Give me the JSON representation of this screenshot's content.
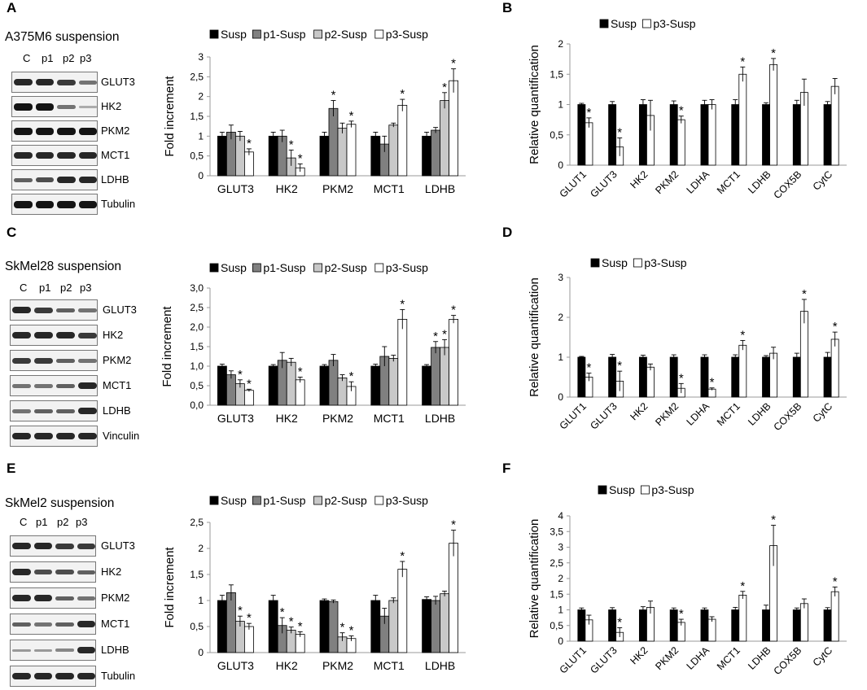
{
  "panels": {
    "A": "A",
    "B": "B",
    "C": "C",
    "D": "D",
    "E": "E",
    "F": "F"
  },
  "blots": [
    {
      "title": "A375M6 suspension",
      "lanes": [
        "C",
        "p1",
        "p2",
        "p3"
      ],
      "rows": [
        {
          "label": "GLUT3",
          "intensity": [
            0.9,
            0.9,
            0.8,
            0.5
          ]
        },
        {
          "label": "HK2",
          "intensity": [
            1.0,
            1.0,
            0.5,
            0.2
          ]
        },
        {
          "label": "PKM2",
          "intensity": [
            1.0,
            1.0,
            1.0,
            1.0
          ]
        },
        {
          "label": "MCT1",
          "intensity": [
            0.9,
            0.9,
            0.9,
            0.9
          ]
        },
        {
          "label": "LDHB",
          "intensity": [
            0.6,
            0.7,
            0.9,
            0.9
          ]
        },
        {
          "label": "Tubulin",
          "intensity": [
            1.0,
            1.0,
            1.0,
            1.0
          ]
        }
      ]
    },
    {
      "title": "SkMel28 suspension",
      "lanes": [
        "C",
        "p1",
        "p2",
        "p3"
      ],
      "rows": [
        {
          "label": "GLUT3",
          "intensity": [
            0.9,
            0.8,
            0.6,
            0.5
          ]
        },
        {
          "label": "HK2",
          "intensity": [
            0.9,
            0.9,
            0.9,
            0.8
          ]
        },
        {
          "label": "PKM2",
          "intensity": [
            0.8,
            0.8,
            0.6,
            0.5
          ]
        },
        {
          "label": "MCT1",
          "intensity": [
            0.5,
            0.5,
            0.6,
            0.9
          ]
        },
        {
          "label": "LDHB",
          "intensity": [
            0.5,
            0.6,
            0.6,
            0.9
          ]
        },
        {
          "label": "Vinculin",
          "intensity": [
            0.9,
            0.9,
            0.9,
            0.9
          ]
        }
      ]
    },
    {
      "title": "SkMel2 suspension",
      "lanes": [
        "C",
        "p1",
        "p2",
        "p3"
      ],
      "rows": [
        {
          "label": "GLUT3",
          "intensity": [
            0.9,
            0.9,
            0.8,
            0.8
          ]
        },
        {
          "label": "HK2",
          "intensity": [
            0.9,
            0.7,
            0.7,
            0.6
          ]
        },
        {
          "label": "PKM2",
          "intensity": [
            0.9,
            0.9,
            0.6,
            0.5
          ]
        },
        {
          "label": "MCT1",
          "intensity": [
            0.6,
            0.5,
            0.6,
            0.9
          ]
        },
        {
          "label": "LDHB",
          "intensity": [
            0.3,
            0.3,
            0.4,
            0.9
          ]
        },
        {
          "label": "Tubulin",
          "intensity": [
            0.9,
            0.9,
            0.9,
            0.9
          ]
        }
      ]
    }
  ],
  "chart_data": [
    {
      "id": "A-chart",
      "type": "bar",
      "ylabel": "Fold increment",
      "categories": [
        "GLUT3",
        "HK2",
        "PKM2",
        "MCT1",
        "LDHB"
      ],
      "ylim": [
        0,
        3
      ],
      "ticks": [
        0,
        0.5,
        1,
        1.5,
        2,
        2.5,
        3
      ],
      "tick_labels": [
        "0",
        "0,5",
        "1",
        "1,5",
        "2",
        "2,5",
        "3"
      ],
      "series": [
        {
          "name": "Susp",
          "color": "#000000",
          "values": [
            1,
            1,
            1,
            1,
            1
          ],
          "errors": [
            0.1,
            0.1,
            0.1,
            0.1,
            0.1
          ],
          "sig": [
            false,
            false,
            false,
            false,
            false
          ]
        },
        {
          "name": "p1-Susp",
          "color": "#808080",
          "values": [
            1.1,
            1.0,
            1.7,
            0.8,
            1.15
          ],
          "errors": [
            0.18,
            0.15,
            0.2,
            0.2,
            0.07
          ],
          "sig": [
            false,
            false,
            true,
            false,
            false
          ]
        },
        {
          "name": "p2-Susp",
          "color": "#c8c8c8",
          "values": [
            1.0,
            0.45,
            1.2,
            1.28,
            1.9
          ],
          "errors": [
            0.12,
            0.2,
            0.13,
            0.05,
            0.2
          ],
          "sig": [
            false,
            true,
            false,
            false,
            true
          ]
        },
        {
          "name": "p3-Susp",
          "color": "#ffffff",
          "values": [
            0.6,
            0.2,
            1.3,
            1.78,
            2.4
          ],
          "errors": [
            0.08,
            0.1,
            0.08,
            0.15,
            0.3
          ],
          "sig": [
            true,
            true,
            true,
            true,
            true
          ]
        }
      ]
    },
    {
      "id": "B-chart",
      "type": "bar",
      "ylabel": "Relative quantification",
      "categories": [
        "GLUT1",
        "GLUT3",
        "HK2",
        "PKM2",
        "LDHA",
        "MCT1",
        "LDHB",
        "COX5B",
        "CytC"
      ],
      "ylim": [
        0,
        2
      ],
      "ticks": [
        0,
        0.5,
        1,
        1.5,
        2
      ],
      "tick_labels": [
        "0",
        "0,5",
        "1",
        "1,5",
        "2"
      ],
      "series": [
        {
          "name": "Susp",
          "color": "#000000",
          "values": [
            1,
            1,
            1,
            1,
            1,
            1,
            1,
            1,
            1
          ],
          "errors": [
            0.02,
            0.05,
            0.08,
            0.06,
            0.07,
            0.08,
            0.03,
            0.07,
            0.05
          ],
          "sig": [
            false,
            false,
            false,
            false,
            false,
            false,
            false,
            false,
            false
          ]
        },
        {
          "name": "p3-Susp",
          "color": "#ffffff",
          "values": [
            0.7,
            0.3,
            0.82,
            0.75,
            1.0,
            1.5,
            1.66,
            1.2,
            1.3
          ],
          "errors": [
            0.08,
            0.15,
            0.25,
            0.06,
            0.08,
            0.12,
            0.1,
            0.22,
            0.13
          ],
          "sig": [
            true,
            true,
            false,
            true,
            false,
            true,
            true,
            false,
            false
          ]
        }
      ]
    },
    {
      "id": "C-chart",
      "type": "bar",
      "ylabel": "Fold increment",
      "categories": [
        "GLUT3",
        "HK2",
        "PKM2",
        "MCT1",
        "LDHB"
      ],
      "ylim": [
        0,
        3
      ],
      "ticks": [
        0,
        0.5,
        1,
        1.5,
        2,
        2.5,
        3
      ],
      "tick_labels": [
        "0,0",
        "0,5",
        "1,0",
        "1,5",
        "2,0",
        "2,5",
        "3,0"
      ],
      "series": [
        {
          "name": "Susp",
          "color": "#000000",
          "values": [
            1,
            1,
            1,
            1,
            1
          ],
          "errors": [
            0.05,
            0.04,
            0.04,
            0.05,
            0.04
          ],
          "sig": [
            false,
            false,
            false,
            false,
            false
          ]
        },
        {
          "name": "p1-Susp",
          "color": "#808080",
          "values": [
            0.78,
            1.15,
            1.15,
            1.25,
            1.48
          ],
          "errors": [
            0.1,
            0.2,
            0.15,
            0.25,
            0.15
          ],
          "sig": [
            false,
            false,
            false,
            false,
            true
          ]
        },
        {
          "name": "p2-Susp",
          "color": "#c8c8c8",
          "values": [
            0.55,
            1.1,
            0.7,
            1.2,
            1.48
          ],
          "errors": [
            0.1,
            0.1,
            0.08,
            0.08,
            0.2
          ],
          "sig": [
            true,
            false,
            false,
            false,
            true
          ]
        },
        {
          "name": "p3-Susp",
          "color": "#ffffff",
          "values": [
            0.38,
            0.65,
            0.48,
            2.2,
            2.2
          ],
          "errors": [
            0.03,
            0.07,
            0.12,
            0.25,
            0.1
          ],
          "sig": [
            true,
            true,
            true,
            true,
            true
          ]
        }
      ]
    },
    {
      "id": "D-chart",
      "type": "bar",
      "ylabel": "Relative quantification",
      "categories": [
        "GLUT1",
        "GLUT3",
        "HK2",
        "PKM2",
        "LDHA",
        "MCT1",
        "LDHB",
        "COX5B",
        "CytC"
      ],
      "ylim": [
        0,
        3
      ],
      "ticks": [
        0,
        1,
        2,
        3
      ],
      "tick_labels": [
        "0",
        "1",
        "2",
        "3"
      ],
      "series": [
        {
          "name": "Susp",
          "color": "#000000",
          "values": [
            1,
            1,
            1,
            1,
            1,
            1,
            1,
            1,
            1
          ],
          "errors": [
            0.02,
            0.07,
            0.05,
            0.06,
            0.06,
            0.06,
            0.04,
            0.1,
            0.12
          ],
          "sig": [
            false,
            false,
            false,
            false,
            false,
            false,
            false,
            false,
            false
          ]
        },
        {
          "name": "p3-Susp",
          "color": "#ffffff",
          "values": [
            0.5,
            0.4,
            0.75,
            0.22,
            0.2,
            1.3,
            1.1,
            2.15,
            1.45
          ],
          "errors": [
            0.1,
            0.25,
            0.08,
            0.12,
            0.03,
            0.12,
            0.15,
            0.3,
            0.18
          ],
          "sig": [
            true,
            true,
            false,
            true,
            true,
            true,
            false,
            true,
            true
          ]
        }
      ]
    },
    {
      "id": "E-chart",
      "type": "bar",
      "ylabel": "Fold increment",
      "categories": [
        "GLUT3",
        "HK2",
        "PKM2",
        "MCT1",
        "LDHB"
      ],
      "ylim": [
        0,
        2.5
      ],
      "ticks": [
        0,
        0.5,
        1,
        1.5,
        2,
        2.5
      ],
      "tick_labels": [
        "0",
        "0,5",
        "1",
        "1,5",
        "2",
        "2,5"
      ],
      "series": [
        {
          "name": "Susp",
          "color": "#000000",
          "values": [
            1,
            1,
            1,
            1,
            1.02
          ],
          "errors": [
            0.1,
            0.1,
            0.03,
            0.1,
            0.05
          ],
          "sig": [
            false,
            false,
            false,
            false,
            false
          ]
        },
        {
          "name": "p1-Susp",
          "color": "#808080",
          "values": [
            1.15,
            0.52,
            0.98,
            0.7,
            1.0
          ],
          "errors": [
            0.15,
            0.15,
            0.03,
            0.15,
            0.08
          ],
          "sig": [
            false,
            true,
            false,
            false,
            false
          ]
        },
        {
          "name": "p2-Susp",
          "color": "#c8c8c8",
          "values": [
            0.6,
            0.43,
            0.3,
            1.0,
            1.13
          ],
          "errors": [
            0.1,
            0.06,
            0.08,
            0.05,
            0.05
          ],
          "sig": [
            true,
            true,
            true,
            false,
            false
          ]
        },
        {
          "name": "p3-Susp",
          "color": "#ffffff",
          "values": [
            0.5,
            0.35,
            0.27,
            1.6,
            2.1
          ],
          "errors": [
            0.06,
            0.05,
            0.05,
            0.15,
            0.25
          ],
          "sig": [
            true,
            true,
            true,
            true,
            true
          ]
        }
      ]
    },
    {
      "id": "F-chart",
      "type": "bar",
      "ylabel": "Relative quantification",
      "categories": [
        "GLUT1",
        "GLUT3",
        "HK2",
        "PKM2",
        "LDHA",
        "MCT1",
        "LDHB",
        "COX5B",
        "CytC"
      ],
      "ylim": [
        0,
        4
      ],
      "ticks": [
        0,
        0.5,
        1,
        1.5,
        2,
        2.5,
        3,
        3.5,
        4
      ],
      "tick_labels": [
        "0",
        "0,5",
        "1",
        "1,5",
        "2",
        "2,5",
        "3",
        "3,5",
        "4"
      ],
      "series": [
        {
          "name": "Susp",
          "color": "#000000",
          "values": [
            1,
            1,
            1,
            1,
            1,
            1,
            1,
            1,
            1
          ],
          "errors": [
            0.06,
            0.07,
            0.1,
            0.06,
            0.06,
            0.08,
            0.15,
            0.06,
            0.07
          ],
          "sig": [
            false,
            false,
            false,
            false,
            false,
            false,
            false,
            false,
            false
          ]
        },
        {
          "name": "p3-Susp",
          "color": "#ffffff",
          "values": [
            0.68,
            0.28,
            1.08,
            0.6,
            0.7,
            1.47,
            3.05,
            1.2,
            1.58
          ],
          "errors": [
            0.15,
            0.15,
            0.2,
            0.1,
            0.08,
            0.12,
            0.65,
            0.15,
            0.15
          ],
          "sig": [
            false,
            true,
            false,
            true,
            false,
            true,
            true,
            false,
            true
          ]
        }
      ]
    }
  ]
}
